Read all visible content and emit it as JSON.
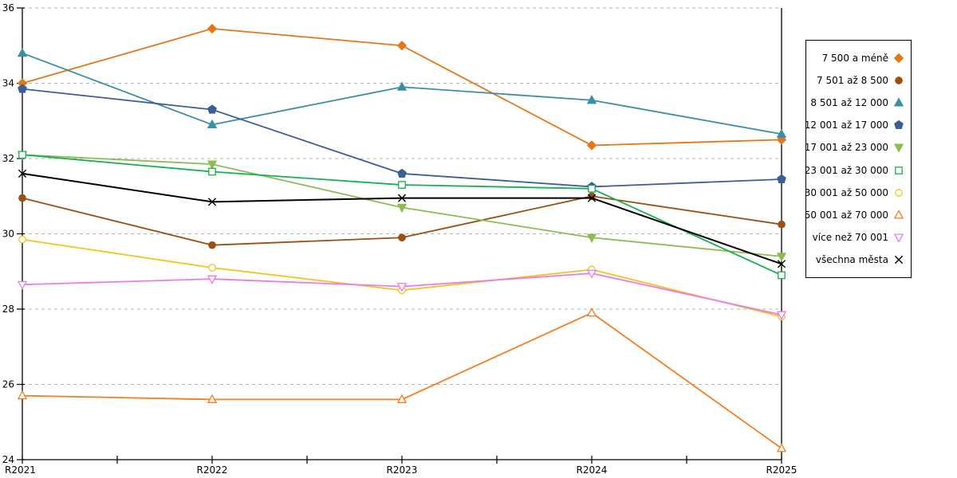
{
  "chart_data": {
    "type": "line",
    "title": "",
    "xlabel": "",
    "ylabel": "",
    "categories": [
      "R2021",
      "R2022",
      "R2023",
      "R2024",
      "R2025"
    ],
    "ylim": [
      24,
      36
    ],
    "y_ticks": [
      24,
      26,
      28,
      30,
      32,
      34,
      36
    ],
    "grid": "horizontal dashed gray lines at 26,28,30,32,34,36",
    "legend_position": "right outside, bordered box, markers right of right-aligned labels",
    "series": [
      {
        "name": "7 500 a méně",
        "color": "#E67719",
        "marker": "diamond",
        "filled": true,
        "values": [
          34.0,
          35.45,
          35.0,
          32.35,
          32.5
        ]
      },
      {
        "name": "7 501 až 8 500",
        "color": "#9C4F10",
        "marker": "circle",
        "filled": true,
        "values": [
          30.95,
          29.7,
          29.9,
          31.0,
          30.25
        ]
      },
      {
        "name": "8 501 až 12 000",
        "color": "#3B8EA5",
        "marker": "triangle-up",
        "filled": true,
        "values": [
          34.8,
          32.9,
          33.9,
          33.55,
          32.65
        ]
      },
      {
        "name": "12 001 až 17 000",
        "color": "#3B5E97",
        "marker": "pentagon",
        "filled": true,
        "values": [
          33.85,
          33.3,
          31.6,
          31.25,
          31.45
        ]
      },
      {
        "name": "17 001 až 23 000",
        "color": "#8FBC52",
        "marker": "triangle-down",
        "filled": true,
        "values": [
          32.1,
          31.85,
          30.7,
          29.9,
          29.4
        ]
      },
      {
        "name": "23 001 až 30 000",
        "color": "#17B050",
        "marker": "square",
        "filled": false,
        "values": [
          32.1,
          31.65,
          31.3,
          31.2,
          28.9
        ]
      },
      {
        "name": "30 001 až 50 000",
        "color": "#F2C41C",
        "marker": "circle",
        "filled": false,
        "values": [
          29.85,
          29.1,
          28.5,
          29.05,
          27.8
        ]
      },
      {
        "name": "50 001 až 70 000",
        "color": "#F57E20",
        "marker": "triangle-up",
        "filled": false,
        "values": [
          25.7,
          25.6,
          25.6,
          27.9,
          24.3
        ]
      },
      {
        "name": "více než 70 001",
        "color": "#EE7BE5",
        "marker": "triangle-down",
        "filled": false,
        "values": [
          28.65,
          28.8,
          28.6,
          28.95,
          27.85
        ]
      },
      {
        "name": "všechna města",
        "color": "#000000",
        "marker": "x",
        "filled": false,
        "values": [
          31.6,
          30.85,
          30.95,
          30.95,
          29.2
        ]
      }
    ],
    "colors": {
      "axis": "#000000",
      "gridline": "#b5b5b5",
      "background": "#ffffff"
    }
  }
}
